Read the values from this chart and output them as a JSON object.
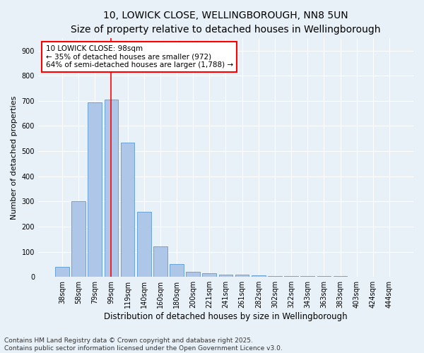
{
  "title1": "10, LOWICK CLOSE, WELLINGBOROUGH, NN8 5UN",
  "title2": "Size of property relative to detached houses in Wellingborough",
  "xlabel": "Distribution of detached houses by size in Wellingborough",
  "ylabel": "Number of detached properties",
  "categories": [
    "38sqm",
    "58sqm",
    "79sqm",
    "99sqm",
    "119sqm",
    "140sqm",
    "160sqm",
    "180sqm",
    "200sqm",
    "221sqm",
    "241sqm",
    "261sqm",
    "282sqm",
    "302sqm",
    "322sqm",
    "343sqm",
    "363sqm",
    "383sqm",
    "403sqm",
    "424sqm",
    "444sqm"
  ],
  "values": [
    40,
    300,
    695,
    705,
    535,
    260,
    120,
    50,
    20,
    15,
    10,
    8,
    5,
    4,
    3,
    3,
    2,
    2,
    1,
    1,
    1
  ],
  "bar_color": "#aec6e8",
  "bar_edge_color": "#5b9bd5",
  "vline_x_idx": 3.0,
  "annotation_text": "10 LOWICK CLOSE: 98sqm\n← 35% of detached houses are smaller (972)\n64% of semi-detached houses are larger (1,788) →",
  "annotation_box_color": "white",
  "annotation_box_edge_color": "red",
  "vline_color": "red",
  "ylim": [
    0,
    950
  ],
  "yticks": [
    0,
    100,
    200,
    300,
    400,
    500,
    600,
    700,
    800,
    900
  ],
  "background_color": "#e8f0f8",
  "footer": "Contains HM Land Registry data © Crown copyright and database right 2025.\nContains public sector information licensed under the Open Government Licence v3.0.",
  "title1_fontsize": 10,
  "title2_fontsize": 9,
  "xlabel_fontsize": 8.5,
  "ylabel_fontsize": 8,
  "tick_fontsize": 7,
  "annotation_fontsize": 7.5,
  "footer_fontsize": 6.5
}
